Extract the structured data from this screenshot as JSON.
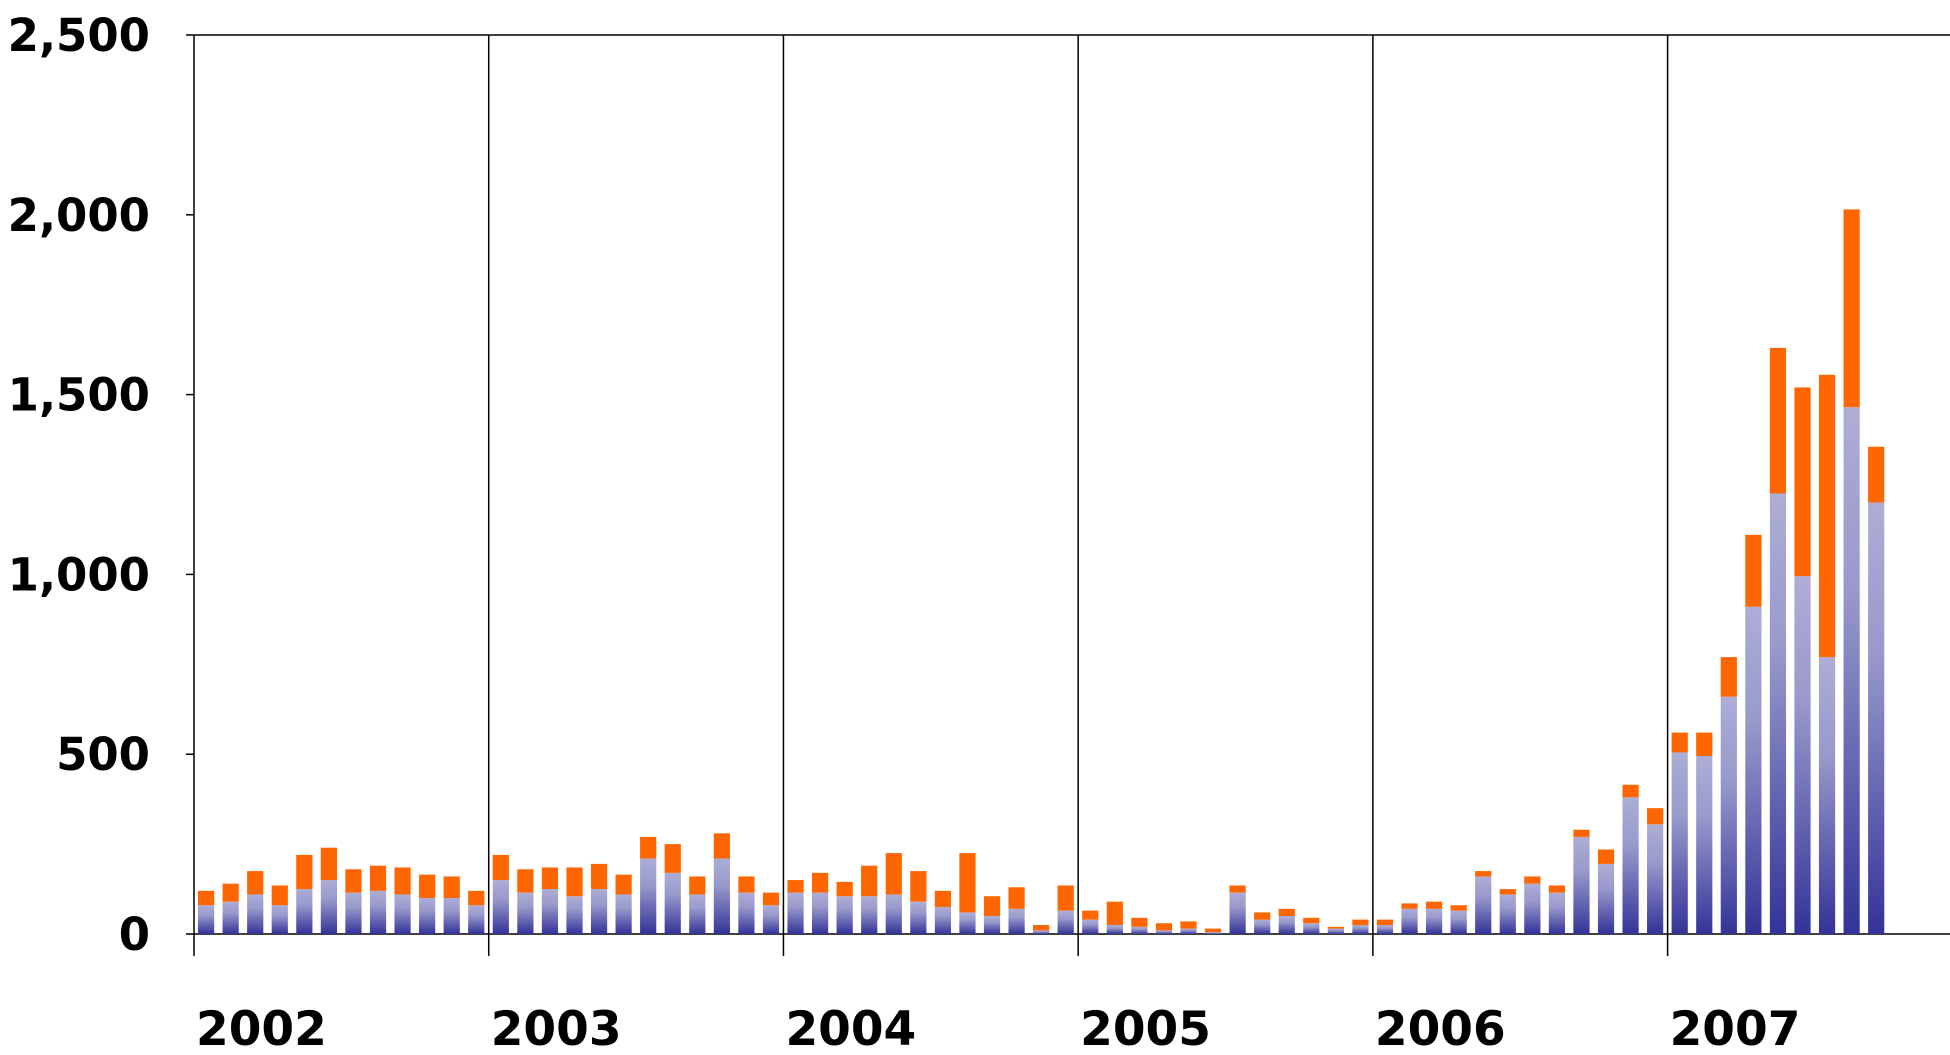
{
  "chart_data": {
    "type": "stacked_bar",
    "categories": [
      "2002",
      null,
      null,
      null,
      null,
      null,
      null,
      null,
      null,
      null,
      null,
      null,
      "2003",
      null,
      null,
      null,
      null,
      null,
      null,
      null,
      null,
      null,
      null,
      null,
      "2004",
      null,
      null,
      null,
      null,
      null,
      null,
      null,
      null,
      null,
      null,
      null,
      "2005",
      null,
      null,
      null,
      null,
      null,
      null,
      null,
      null,
      null,
      null,
      null,
      "2006",
      null,
      null,
      null,
      null,
      null,
      null,
      null,
      null,
      null,
      null,
      null,
      "2007",
      null,
      null,
      null,
      null,
      null,
      null,
      null,
      null
    ],
    "series": [
      {
        "color": "#333399",
        "values": [
          80,
          90,
          110,
          80,
          125,
          150,
          115,
          120,
          110,
          100,
          100,
          80,
          150,
          115,
          125,
          105,
          125,
          110,
          210,
          170,
          110,
          210,
          115,
          80,
          115,
          115,
          105,
          105,
          110,
          90,
          75,
          60,
          50,
          70,
          10,
          65,
          40,
          25,
          20,
          10,
          15,
          5,
          115,
          40,
          50,
          30,
          15,
          25,
          25,
          70,
          70,
          65,
          160,
          110,
          140,
          115,
          270,
          195,
          380,
          305,
          505,
          495,
          660,
          910,
          1225,
          995,
          770,
          1465,
          1200
        ]
      },
      {
        "color": "#ff6600",
        "values": [
          40,
          50,
          65,
          55,
          95,
          90,
          65,
          70,
          75,
          65,
          60,
          40,
          70,
          65,
          60,
          80,
          70,
          55,
          60,
          80,
          50,
          70,
          45,
          35,
          35,
          55,
          40,
          85,
          115,
          85,
          45,
          165,
          55,
          60,
          15,
          70,
          25,
          65,
          25,
          20,
          20,
          10,
          20,
          20,
          20,
          15,
          5,
          15,
          15,
          15,
          20,
          15,
          15,
          15,
          20,
          20,
          20,
          40,
          35,
          45,
          55,
          65,
          110,
          200,
          405,
          525,
          785,
          550,
          155
        ]
      }
    ],
    "ylim": [
      0,
      2500
    ],
    "yticks": [
      0,
      500,
      {
        "value": 1000,
        "label": "1,000"
      },
      {
        "value": 1500,
        "label": "1,500"
      },
      {
        "value": 2000,
        "label": "2,000"
      },
      {
        "value": 2500,
        "label": "2,500"
      }
    ]
  }
}
